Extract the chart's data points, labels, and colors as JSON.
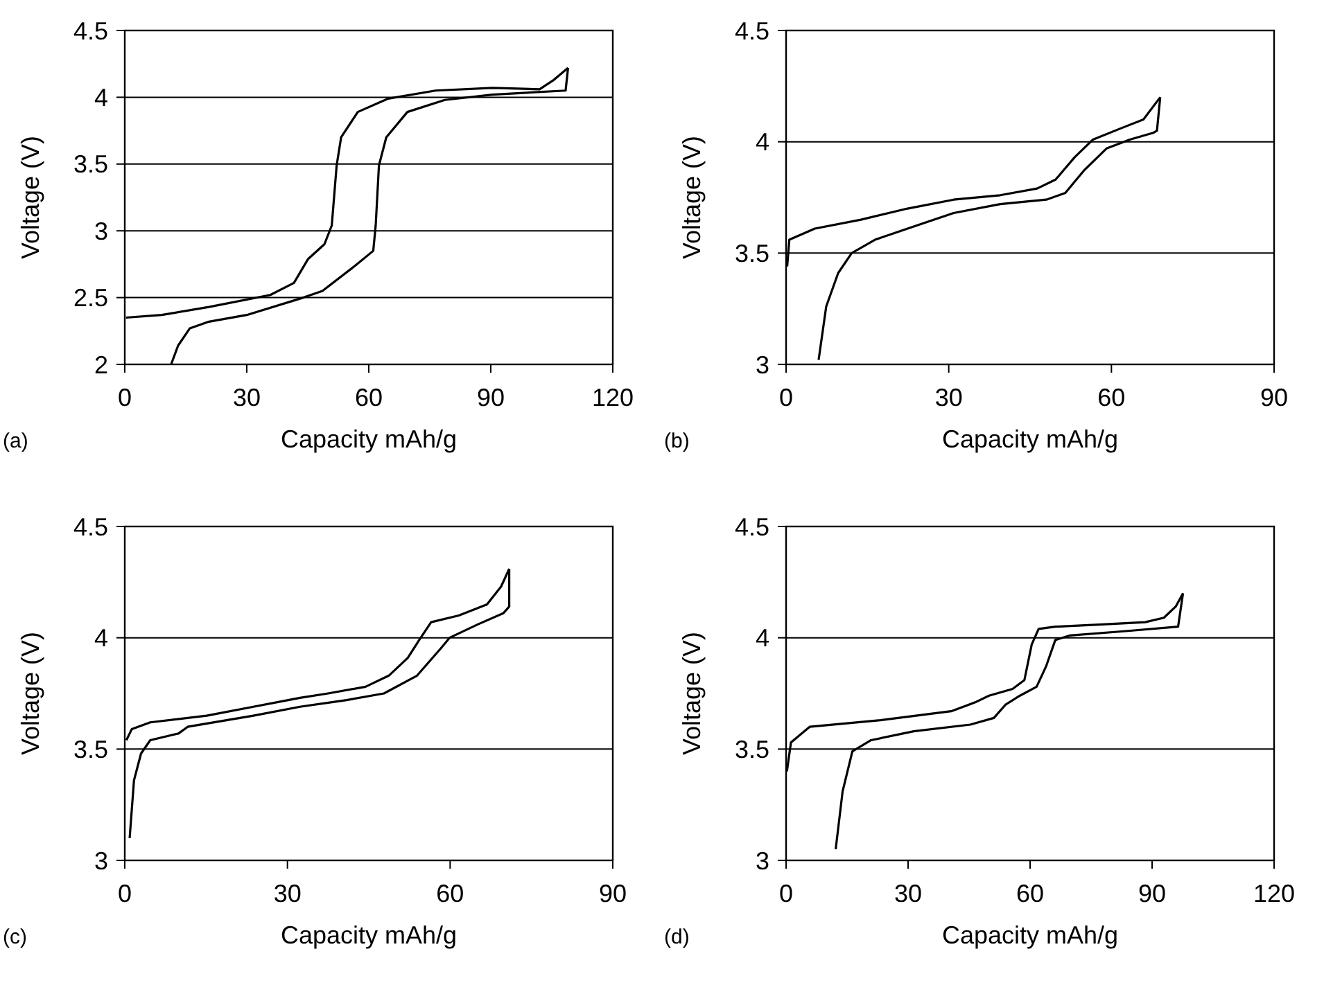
{
  "chart_data": [
    {
      "type": "line",
      "xlabel": "Capacity mAh/g",
      "ylabel": "Voltage (V)",
      "annotations": [
        "(a)"
      ],
      "xlim": [
        0,
        120
      ],
      "ylim": [
        2,
        4.5
      ],
      "xticks": [
        0,
        30,
        60,
        90,
        120
      ],
      "yticks": [
        2,
        2.5,
        3,
        3.5,
        4,
        4.5
      ],
      "grid": "y",
      "series": [
        {
          "color": "#000000",
          "x": [
            0.3,
            9.1,
            20.7,
            35.8,
            41.6,
            45.1,
            49.1,
            50.9,
            52.1,
            53.2,
            57.3,
            64.8,
            76.4,
            90.4,
            102.0,
            105.5,
            109.0
          ],
          "values": [
            2.35,
            2.37,
            2.43,
            2.52,
            2.61,
            2.79,
            2.9,
            3.04,
            3.49,
            3.7,
            3.89,
            3.99,
            4.05,
            4.07,
            4.06,
            4.13,
            4.22
          ]
        },
        {
          "color": "#000000",
          "x": [
            11.4,
            13.1,
            16.0,
            20.7,
            30.0,
            43.9,
            48.6,
            56.7,
            61.1,
            61.7,
            62.5,
            64.3,
            69.5,
            78.7,
            90.4,
            108.4,
            109.0
          ],
          "values": [
            2.0,
            2.14,
            2.27,
            2.32,
            2.37,
            2.5,
            2.55,
            2.74,
            2.85,
            3.04,
            3.49,
            3.7,
            3.89,
            3.98,
            4.02,
            4.05,
            4.22
          ]
        }
      ]
    },
    {
      "type": "line",
      "xlabel": "Capacity mAh/g",
      "ylabel": "Voltage (V)",
      "annotations": [
        "(b)"
      ],
      "xlim": [
        0,
        90
      ],
      "ylim": [
        3,
        4.5
      ],
      "xticks": [
        0,
        30,
        60,
        90
      ],
      "yticks": [
        3,
        3.5,
        4,
        4.5
      ],
      "grid": "y",
      "series": [
        {
          "color": "#000000",
          "x": [
            0.2,
            0.6,
            5.3,
            13.8,
            22.4,
            30.9,
            39.5,
            46.3,
            49.7,
            53.2,
            56.6,
            61.7,
            65.9,
            69.0
          ],
          "values": [
            3.44,
            3.56,
            3.61,
            3.65,
            3.7,
            3.74,
            3.76,
            3.79,
            3.83,
            3.93,
            4.01,
            4.06,
            4.1,
            4.2
          ]
        },
        {
          "color": "#000000",
          "x": [
            6.0,
            7.4,
            9.6,
            12.1,
            16.4,
            22.4,
            30.9,
            39.5,
            48.0,
            51.5,
            54.9,
            59.1,
            63.4,
            67.7,
            68.4,
            69.0
          ],
          "values": [
            3.02,
            3.26,
            3.41,
            3.5,
            3.56,
            3.61,
            3.68,
            3.72,
            3.74,
            3.77,
            3.87,
            3.97,
            4.01,
            4.04,
            4.05,
            4.2
          ]
        }
      ]
    },
    {
      "type": "line",
      "xlabel": "Capacity mAh/g",
      "ylabel": "Voltage (V)",
      "annotations": [
        "(c)"
      ],
      "xlim": [
        0,
        90
      ],
      "ylim": [
        3,
        4.5
      ],
      "xticks": [
        0,
        30,
        60,
        90
      ],
      "yticks": [
        3,
        3.5,
        4,
        4.5
      ],
      "grid": "y",
      "series": [
        {
          "color": "#000000",
          "x": [
            0.3,
            1.3,
            4.7,
            15.1,
            23.7,
            32.3,
            37.5,
            44.4,
            48.7,
            52.2,
            54.3,
            56.5,
            61.6,
            66.8,
            69.4,
            70.9
          ],
          "values": [
            3.54,
            3.59,
            3.62,
            3.65,
            3.69,
            3.73,
            3.75,
            3.78,
            3.83,
            3.91,
            3.99,
            4.07,
            4.1,
            4.15,
            4.23,
            4.31
          ]
        },
        {
          "color": "#000000",
          "x": [
            0.9,
            1.7,
            3.0,
            4.7,
            9.9,
            11.6,
            23.7,
            32.3,
            40.9,
            47.8,
            53.9,
            58.2,
            59.9,
            65.1,
            69.8,
            70.9,
            70.9
          ],
          "values": [
            3.1,
            3.36,
            3.48,
            3.54,
            3.57,
            3.6,
            3.65,
            3.69,
            3.72,
            3.75,
            3.83,
            3.95,
            4.0,
            4.06,
            4.11,
            4.14,
            4.31
          ]
        }
      ]
    },
    {
      "type": "line",
      "xlabel": "Capacity mAh/g",
      "ylabel": "Voltage (V)",
      "annotations": [
        "(d)"
      ],
      "xlim": [
        0,
        120
      ],
      "ylim": [
        3,
        4.5
      ],
      "xticks": [
        0,
        30,
        60,
        90,
        120
      ],
      "yticks": [
        3,
        3.5,
        4,
        4.5
      ],
      "grid": "y",
      "series": [
        {
          "color": "#000000",
          "x": [
            0.2,
            1.2,
            5.8,
            23.2,
            40.6,
            46.5,
            49.9,
            55.7,
            58.6,
            60.4,
            62.1,
            66.2,
            77.8,
            88.3,
            92.9,
            95.8,
            97.6
          ],
          "values": [
            3.4,
            3.53,
            3.6,
            3.63,
            3.67,
            3.71,
            3.74,
            3.77,
            3.81,
            3.97,
            4.04,
            4.05,
            4.06,
            4.07,
            4.09,
            4.14,
            4.2
          ]
        },
        {
          "color": "#000000",
          "x": [
            12.2,
            13.9,
            16.3,
            20.9,
            31.4,
            45.3,
            51.1,
            54.0,
            57.5,
            61.6,
            63.9,
            66.2,
            69.7,
            83.6,
            96.4,
            97.6
          ],
          "values": [
            3.05,
            3.31,
            3.49,
            3.54,
            3.58,
            3.61,
            3.64,
            3.7,
            3.74,
            3.78,
            3.87,
            3.99,
            4.01,
            4.03,
            4.05,
            4.2
          ]
        }
      ]
    }
  ]
}
